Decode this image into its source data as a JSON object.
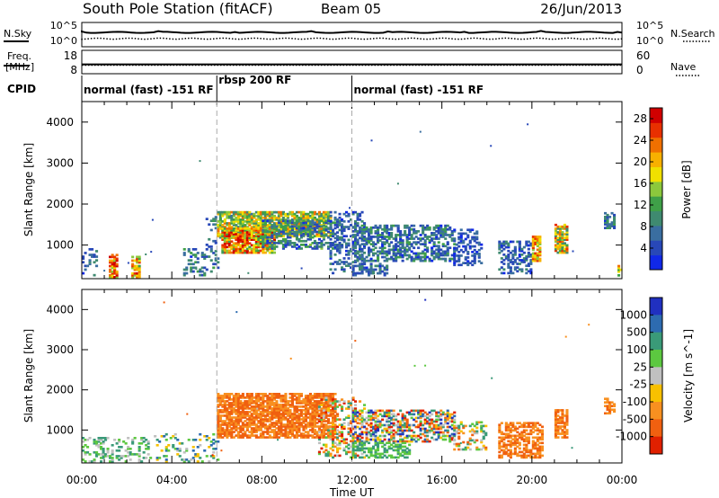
{
  "header": {
    "station": "South Pole Station (fitACF)",
    "beam": "Beam 05",
    "date": "26/Jun/2013"
  },
  "side_labels": {
    "nsky": "N.Sky",
    "nsearch": "N.Search",
    "freq_line1": "Freq.",
    "freq_line2": "[MHz]",
    "nave": "Nave",
    "cpid": "CPID"
  },
  "noise_panel": {
    "left_ticks": [
      "10^5",
      "10^0"
    ],
    "right_ticks": [
      "10^5",
      "10^0"
    ]
  },
  "freq_panel": {
    "left_ticks": [
      "18",
      "8"
    ],
    "right_ticks": [
      "60",
      "0"
    ],
    "freq_mhz": 12,
    "nave": 22
  },
  "cpid_segments": [
    {
      "label": "normal (fast) -151 RF",
      "start_h": 0,
      "end_h": 6
    },
    {
      "label": "rbsp 200 RF",
      "start_h": 6,
      "end_h": 12
    },
    {
      "label": "normal (fast) -151 RF",
      "start_h": 12,
      "end_h": 24
    }
  ],
  "chart_data": [
    {
      "type": "heatmap",
      "parameter": "Power",
      "xlabel": "",
      "ylabel": "Slant Range [km]",
      "xlim": [
        0,
        24
      ],
      "ylim": [
        180,
        4500
      ],
      "y_ticks": [
        1000,
        2000,
        3000,
        4000
      ],
      "colorbar": {
        "label": "Power [dB]",
        "ticks": [
          4,
          8,
          12,
          16,
          20,
          24,
          28
        ],
        "range": [
          0,
          30
        ],
        "colors": [
          "#1028e8",
          "#2848b8",
          "#3a6ea0",
          "#3f8a70",
          "#3fa048",
          "#8cc83c",
          "#f0e000",
          "#f8b000",
          "#f07000",
          "#e83000",
          "#d00000"
        ]
      },
      "regions": [
        {
          "t0": 1.2,
          "t1": 1.6,
          "r0": 200,
          "r1": 750,
          "v0": 14,
          "v1": 30,
          "d": 0.75
        },
        {
          "t0": 2.2,
          "t1": 2.6,
          "r0": 200,
          "r1": 700,
          "v0": 12,
          "v1": 28,
          "d": 0.7
        },
        {
          "t0": 0.0,
          "t1": 0.7,
          "r0": 250,
          "r1": 900,
          "v0": 2,
          "v1": 10,
          "d": 0.25
        },
        {
          "t0": 4.5,
          "t1": 6.0,
          "r0": 250,
          "r1": 900,
          "v0": 2,
          "v1": 12,
          "d": 0.3
        },
        {
          "t0": 5.5,
          "t1": 6.2,
          "r0": 900,
          "r1": 1700,
          "v0": 2,
          "v1": 14,
          "d": 0.25
        },
        {
          "t0": 6.0,
          "t1": 11.0,
          "r0": 1200,
          "r1": 1800,
          "v0": 8,
          "v1": 24,
          "d": 0.8
        },
        {
          "t0": 6.2,
          "t1": 8.5,
          "r0": 800,
          "r1": 1400,
          "v0": 12,
          "v1": 30,
          "d": 0.85
        },
        {
          "t0": 8.0,
          "t1": 11.5,
          "r0": 900,
          "r1": 1600,
          "v0": 2,
          "v1": 14,
          "d": 0.5
        },
        {
          "t0": 11.0,
          "t1": 12.5,
          "r0": 300,
          "r1": 1800,
          "v0": 2,
          "v1": 10,
          "d": 0.35
        },
        {
          "t0": 12.0,
          "t1": 16.5,
          "r0": 600,
          "r1": 1500,
          "v0": 2,
          "v1": 12,
          "d": 0.55
        },
        {
          "t0": 12.0,
          "t1": 13.5,
          "r0": 250,
          "r1": 550,
          "v0": 2,
          "v1": 10,
          "d": 0.55
        },
        {
          "t0": 16.5,
          "t1": 17.8,
          "r0": 500,
          "r1": 1400,
          "v0": 2,
          "v1": 8,
          "d": 0.4
        },
        {
          "t0": 18.5,
          "t1": 20.0,
          "r0": 300,
          "r1": 1100,
          "v0": 2,
          "v1": 10,
          "d": 0.45
        },
        {
          "t0": 20.0,
          "t1": 20.4,
          "r0": 600,
          "r1": 1200,
          "v0": 14,
          "v1": 28,
          "d": 0.8
        },
        {
          "t0": 21.0,
          "t1": 21.6,
          "r0": 800,
          "r1": 1500,
          "v0": 8,
          "v1": 26,
          "d": 0.8
        },
        {
          "t0": 23.2,
          "t1": 23.7,
          "r0": 1400,
          "r1": 1800,
          "v0": 2,
          "v1": 12,
          "d": 0.6
        },
        {
          "t0": 23.8,
          "t1": 24.0,
          "r0": 200,
          "r1": 500,
          "v0": 10,
          "v1": 26,
          "d": 0.5
        }
      ]
    },
    {
      "type": "heatmap",
      "parameter": "Velocity",
      "xlabel": "Time UT",
      "ylabel": "Slant Range [km]",
      "xlim": [
        0,
        24
      ],
      "ylim": [
        180,
        4500
      ],
      "x_ticks": [
        "00:00",
        "04:00",
        "08:00",
        "12:00",
        "16:00",
        "20:00",
        "00:00"
      ],
      "y_ticks": [
        1000,
        2000,
        3000,
        4000
      ],
      "colorbar": {
        "label": "Velocity [m s^-1]",
        "ticks": [
          "1000",
          "500",
          "100",
          "25",
          "-25",
          "-100",
          "-500",
          "-1000"
        ],
        "colors": [
          "#2030c0",
          "#2d6bb0",
          "#3a9a78",
          "#5cc840",
          "#c0c0c0",
          "#f8c000",
          "#f89020",
          "#f06010",
          "#e02000"
        ]
      },
      "regions": [
        {
          "t0": 0.0,
          "t1": 3.0,
          "r0": 200,
          "r1": 800,
          "v0": 2,
          "v1": 4,
          "d": 0.3
        },
        {
          "t0": 3.0,
          "t1": 6.0,
          "r0": 200,
          "r1": 900,
          "v0": 1,
          "v1": 5,
          "d": 0.2
        },
        {
          "t0": 6.0,
          "t1": 11.2,
          "r0": 800,
          "r1": 1900,
          "v0": 6,
          "v1": 7,
          "d": 0.8
        },
        {
          "t0": 10.5,
          "t1": 12.5,
          "r0": 300,
          "r1": 1800,
          "v0": 2,
          "v1": 8,
          "d": 0.3
        },
        {
          "t0": 12.0,
          "t1": 16.5,
          "r0": 700,
          "r1": 1500,
          "v0": 0,
          "v1": 8,
          "d": 0.55
        },
        {
          "t0": 12.0,
          "t1": 14.5,
          "r0": 300,
          "r1": 700,
          "v0": 2,
          "v1": 3,
          "d": 0.5
        },
        {
          "t0": 16.5,
          "t1": 18.0,
          "r0": 500,
          "r1": 1200,
          "v0": 2,
          "v1": 7,
          "d": 0.35
        },
        {
          "t0": 18.5,
          "t1": 20.5,
          "r0": 300,
          "r1": 1200,
          "v0": 6,
          "v1": 7,
          "d": 0.55
        },
        {
          "t0": 21.0,
          "t1": 21.6,
          "r0": 800,
          "r1": 1500,
          "v0": 6,
          "v1": 7,
          "d": 0.75
        },
        {
          "t0": 23.2,
          "t1": 23.7,
          "r0": 1400,
          "r1": 1800,
          "v0": 6,
          "v1": 7,
          "d": 0.6
        }
      ]
    }
  ]
}
